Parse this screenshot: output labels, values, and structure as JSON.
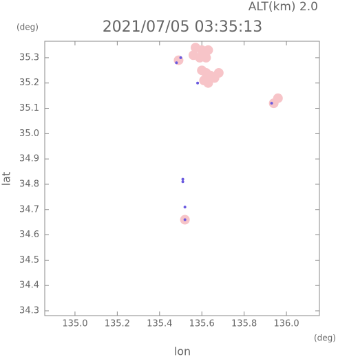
{
  "chart_data": {
    "type": "scatter",
    "title": "2021/07/05 03:35:13",
    "subtitle": "ALT(km) 2.0",
    "xlabel": "lon",
    "ylabel": "lat",
    "xunit": "(deg)",
    "yunit": "(deg)",
    "xlim": [
      134.857,
      136.156
    ],
    "ylim": [
      34.281,
      35.365
    ],
    "xticks": [
      {
        "value": 135.0,
        "label": "135.0"
      },
      135.2,
      135.4,
      135.6,
      135.8,
      {
        "value": 136.0,
        "label": "136.0"
      }
    ],
    "yticks": [
      34.3,
      34.4,
      34.5,
      34.6,
      34.7,
      34.8,
      34.9,
      {
        "value": 35.0,
        "label": "35.0"
      },
      35.1,
      35.2,
      35.3
    ],
    "series": [
      {
        "color": "#f7c4c8",
        "x": [
          135.57,
          135.6,
          135.63,
          135.59,
          135.62,
          135.56,
          135.6,
          135.62,
          135.64,
          135.61,
          135.63,
          135.68,
          135.66,
          135.49,
          135.94,
          135.96,
          135.52
        ],
        "values": [
          35.34,
          35.33,
          35.33,
          35.3,
          35.3,
          35.31,
          35.25,
          35.24,
          35.23,
          35.21,
          35.2,
          35.24,
          35.22,
          35.29,
          35.12,
          35.14,
          34.66
        ]
      },
      {
        "color": "#6a5adf",
        "x": [
          135.48,
          135.5,
          135.93,
          135.51,
          135.51,
          135.52,
          135.52,
          135.58
        ],
        "values": [
          35.28,
          35.3,
          35.12,
          34.82,
          34.81,
          34.71,
          34.66,
          35.2
        ]
      }
    ]
  }
}
